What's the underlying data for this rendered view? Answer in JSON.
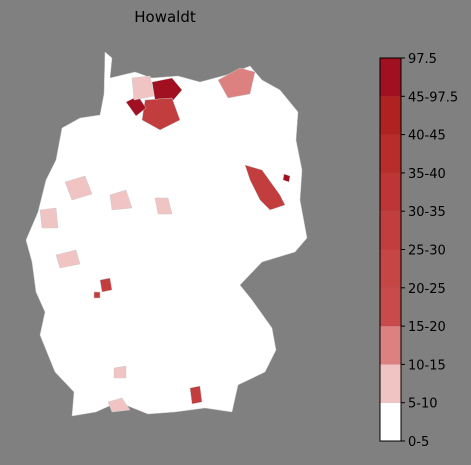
{
  "title": "Howaldt",
  "legend": {
    "labels": [
      "0-5",
      "5-10",
      "10-15",
      "15-20",
      "20-25",
      "25-30",
      "30-35",
      "35-40",
      "40-45",
      "45-97.5",
      "97.5"
    ],
    "colors": [
      "#ffffff",
      "#f1c4c4",
      "#dc8080",
      "#c94a4a",
      "#c64545",
      "#c23d3d",
      "#bd3535",
      "#b82c2c",
      "#b02222",
      "#a01020"
    ]
  }
}
